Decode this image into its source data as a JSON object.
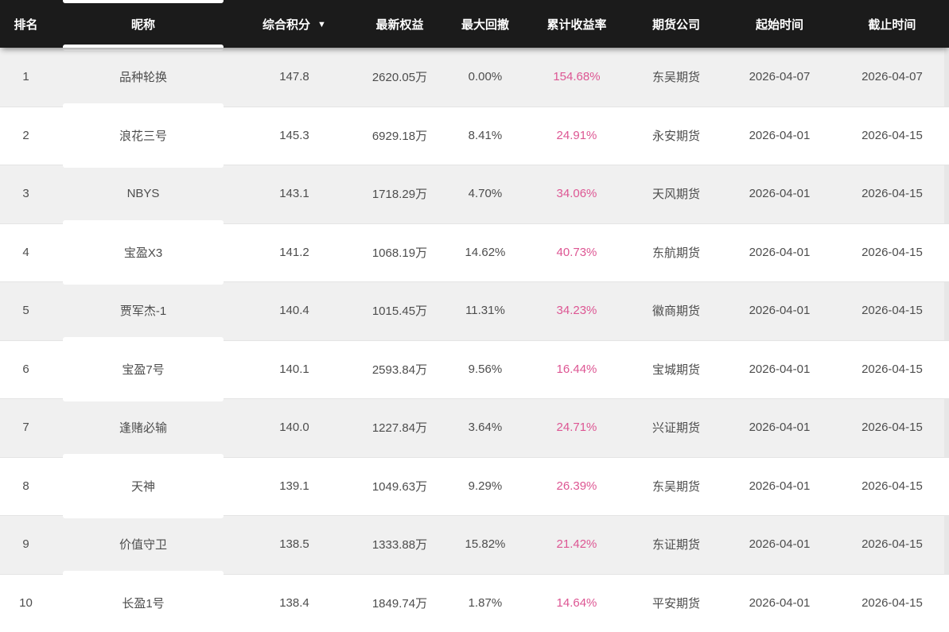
{
  "colors": {
    "header_bg": "#1b1b1b",
    "header_text": "#ffffff",
    "row_alt_bg": "#f0f0f0",
    "row_bg": "#ffffff",
    "body_text": "#4d4d4d",
    "accent_pink": "#dd5693",
    "divider": "#e4e4e4"
  },
  "table": {
    "sort_indicator": "▼",
    "sorted_column": "score",
    "columns": [
      {
        "key": "rank",
        "label": "排名"
      },
      {
        "key": "nickname",
        "label": "昵称"
      },
      {
        "key": "score",
        "label": "综合积分",
        "sort": "desc"
      },
      {
        "key": "equity",
        "label": "最新权益"
      },
      {
        "key": "drawdown",
        "label": "最大回撤"
      },
      {
        "key": "return_rate",
        "label": "累计收益率"
      },
      {
        "key": "company",
        "label": "期货公司"
      },
      {
        "key": "start_date",
        "label": "起始时间"
      },
      {
        "key": "end_date",
        "label": "截止时间"
      }
    ],
    "rows": [
      {
        "rank": "1",
        "nickname": "品种轮换",
        "score": "147.8",
        "equity": "2620.05万",
        "drawdown": "0.00%",
        "return_rate": "154.68%",
        "company": "东吴期货",
        "start_date": "2026-04-07",
        "end_date": "2026-04-07"
      },
      {
        "rank": "2",
        "nickname": "浪花三号",
        "score": "145.3",
        "equity": "6929.18万",
        "drawdown": "8.41%",
        "return_rate": "24.91%",
        "company": "永安期货",
        "start_date": "2026-04-01",
        "end_date": "2026-04-15"
      },
      {
        "rank": "3",
        "nickname": "NBYS",
        "score": "143.1",
        "equity": "1718.29万",
        "drawdown": "4.70%",
        "return_rate": "34.06%",
        "company": "天风期货",
        "start_date": "2026-04-01",
        "end_date": "2026-04-15"
      },
      {
        "rank": "4",
        "nickname": "宝盈X3",
        "score": "141.2",
        "equity": "1068.19万",
        "drawdown": "14.62%",
        "return_rate": "40.73%",
        "company": "东航期货",
        "start_date": "2026-04-01",
        "end_date": "2026-04-15"
      },
      {
        "rank": "5",
        "nickname": "贾军杰-1",
        "score": "140.4",
        "equity": "1015.45万",
        "drawdown": "11.31%",
        "return_rate": "34.23%",
        "company": "徽商期货",
        "start_date": "2026-04-01",
        "end_date": "2026-04-15"
      },
      {
        "rank": "6",
        "nickname": "宝盈7号",
        "score": "140.1",
        "equity": "2593.84万",
        "drawdown": "9.56%",
        "return_rate": "16.44%",
        "company": "宝城期货",
        "start_date": "2026-04-01",
        "end_date": "2026-04-15"
      },
      {
        "rank": "7",
        "nickname": "逢赌必输",
        "score": "140.0",
        "equity": "1227.84万",
        "drawdown": "3.64%",
        "return_rate": "24.71%",
        "company": "兴证期货",
        "start_date": "2026-04-01",
        "end_date": "2026-04-15"
      },
      {
        "rank": "8",
        "nickname": "天神",
        "score": "139.1",
        "equity": "1049.63万",
        "drawdown": "9.29%",
        "return_rate": "26.39%",
        "company": "东吴期货",
        "start_date": "2026-04-01",
        "end_date": "2026-04-15"
      },
      {
        "rank": "9",
        "nickname": "价值守卫",
        "score": "138.5",
        "equity": "1333.88万",
        "drawdown": "15.82%",
        "return_rate": "21.42%",
        "company": "东证期货",
        "start_date": "2026-04-01",
        "end_date": "2026-04-15"
      },
      {
        "rank": "10",
        "nickname": "长盈1号",
        "score": "138.4",
        "equity": "1849.74万",
        "drawdown": "1.87%",
        "return_rate": "14.64%",
        "company": "平安期货",
        "start_date": "2026-04-01",
        "end_date": "2026-04-15"
      }
    ]
  }
}
